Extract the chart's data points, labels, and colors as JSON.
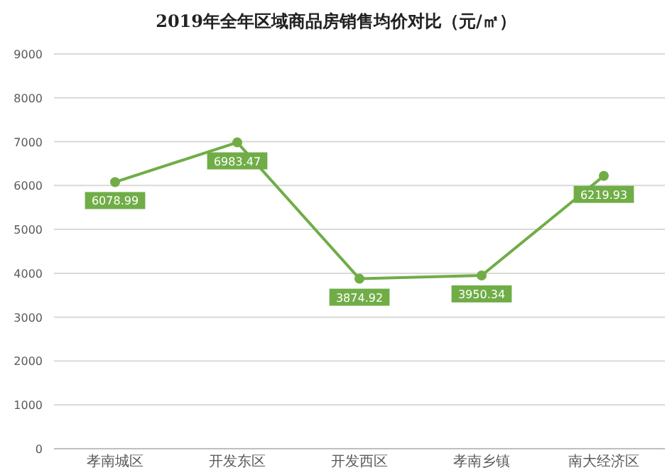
{
  "chart_data": {
    "type": "line",
    "title": "2019年全年区域商品房销售均价对比（元/㎡）",
    "categories": [
      "孝南城区",
      "开发东区",
      "开发西区",
      "孝南乡镇",
      "南大经济区"
    ],
    "series": [
      {
        "color": "#70ad47",
        "values": [
          6078.99,
          6983.47,
          3874.92,
          3950.34,
          6219.93
        ]
      }
    ],
    "ylim": [
      0,
      9000
    ],
    "yticks": [
      0,
      1000,
      2000,
      3000,
      4000,
      5000,
      6000,
      7000,
      8000,
      9000
    ],
    "grid": "y",
    "marker": "circle",
    "line_style": "solid",
    "data_labels": true
  }
}
